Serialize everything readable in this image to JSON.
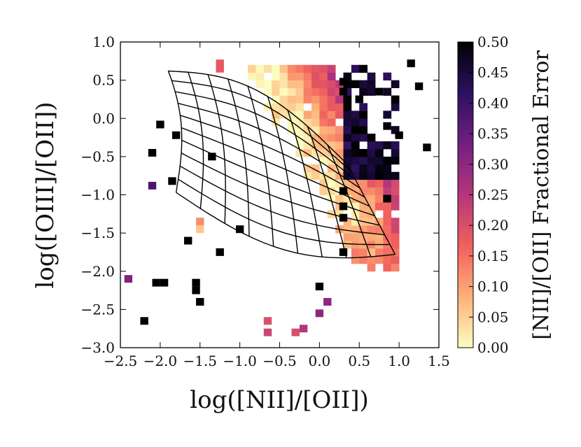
{
  "chart_data": {
    "type": "heatmap",
    "title": "",
    "xlabel": "log([NII]/[OII])",
    "ylabel": "log([OIII]/[OII])",
    "colorbar_label": "[NII]/[OII] Fractional Error",
    "xlim": [
      -2.5,
      1.5
    ],
    "ylim": [
      -3.0,
      1.0
    ],
    "x_ticks": [
      -2.5,
      -2.0,
      -1.5,
      -1.0,
      -0.5,
      0.0,
      0.5,
      1.0,
      1.5
    ],
    "x_tick_labels": [
      "−2.5",
      "−2.0",
      "−1.5",
      "−1.0",
      "−0.5",
      "0.0",
      "0.5",
      "1.0",
      "1.5"
    ],
    "y_ticks": [
      1.0,
      0.5,
      0.0,
      -0.5,
      -1.0,
      -1.5,
      -2.0,
      -2.5,
      -3.0
    ],
    "y_tick_labels": [
      "1.0",
      "0.5",
      "0.0",
      "−0.5",
      "−1.0",
      "−1.5",
      "−2.0",
      "−2.5",
      "−3.0"
    ],
    "colorbar_range": [
      0.0,
      0.5
    ],
    "colorbar_ticks": [
      0.5,
      0.45,
      0.4,
      0.35,
      0.3,
      0.25,
      0.2,
      0.15,
      0.1,
      0.05,
      0.0
    ],
    "colorbar_tick_labels": [
      "0.50",
      "0.45",
      "0.40",
      "0.35",
      "0.30",
      "0.25",
      "0.20",
      "0.15",
      "0.10",
      "0.05",
      "0.00"
    ],
    "colormap": [
      "#fcfdbf",
      "#feb078",
      "#f1605d",
      "#b5367a",
      "#721f81",
      "#2c115f",
      "#000004"
    ],
    "bin_size": 0.1,
    "grid": false,
    "outliers": [
      {
        "x": -2.4,
        "y": -2.1,
        "v": 0.32
      },
      {
        "x": -2.2,
        "y": -2.65,
        "v": 0.5
      },
      {
        "x": -2.05,
        "y": -2.15,
        "v": 0.5
      },
      {
        "x": -1.95,
        "y": -2.15,
        "v": 0.5
      },
      {
        "x": -1.55,
        "y": -2.15,
        "v": 0.5
      },
      {
        "x": -1.55,
        "y": -2.25,
        "v": 0.5
      },
      {
        "x": -1.5,
        "y": -2.4,
        "v": 0.5
      },
      {
        "x": -2.0,
        "y": -0.08,
        "v": 0.5
      },
      {
        "x": -2.1,
        "y": -0.45,
        "v": 0.5
      },
      {
        "x": -2.1,
        "y": -0.88,
        "v": 0.38
      },
      {
        "x": -1.8,
        "y": -0.22,
        "v": 0.5
      },
      {
        "x": -1.85,
        "y": -0.82,
        "v": 0.5
      },
      {
        "x": -1.65,
        "y": -1.6,
        "v": 0.5
      },
      {
        "x": -1.35,
        "y": -0.5,
        "v": 0.5
      },
      {
        "x": -1.25,
        "y": -1.75,
        "v": 0.5
      },
      {
        "x": -1.0,
        "y": -1.45,
        "v": 0.5
      },
      {
        "x": -1.5,
        "y": -1.35,
        "v": 0.12
      },
      {
        "x": -1.5,
        "y": -1.45,
        "v": 0.06
      },
      {
        "x": -1.25,
        "y": 0.65,
        "v": 0.18
      },
      {
        "x": -1.25,
        "y": 0.72,
        "v": 0.18
      },
      {
        "x": 0.3,
        "y": 0.48,
        "v": 0.5
      },
      {
        "x": 0.3,
        "y": 0.35,
        "v": 0.5
      },
      {
        "x": 0.5,
        "y": 0.25,
        "v": 0.5
      },
      {
        "x": 0.75,
        "y": 0.35,
        "v": 0.5
      },
      {
        "x": 0.85,
        "y": -0.1,
        "v": 0.5
      },
      {
        "x": 1.0,
        "y": -0.22,
        "v": 0.5
      },
      {
        "x": 1.15,
        "y": 0.72,
        "v": 0.5
      },
      {
        "x": 1.25,
        "y": 0.42,
        "v": 0.5
      },
      {
        "x": 1.35,
        "y": -0.38,
        "v": 0.5
      },
      {
        "x": 0.85,
        "y": -1.05,
        "v": 0.5
      },
      {
        "x": 0.3,
        "y": -0.95,
        "v": 0.5
      },
      {
        "x": 0.3,
        "y": -1.15,
        "v": 0.5
      },
      {
        "x": 0.3,
        "y": -1.3,
        "v": 0.5
      },
      {
        "x": 0.3,
        "y": -1.75,
        "v": 0.5
      },
      {
        "x": 0.0,
        "y": -2.2,
        "v": 0.5
      },
      {
        "x": 0.1,
        "y": -2.4,
        "v": 0.3
      },
      {
        "x": 0.0,
        "y": -2.55,
        "v": 0.3
      },
      {
        "x": -0.65,
        "y": -2.65,
        "v": 0.2
      },
      {
        "x": -0.65,
        "y": -2.8,
        "v": 0.22
      },
      {
        "x": -0.3,
        "y": -2.8,
        "v": 0.2
      },
      {
        "x": -0.2,
        "y": -2.75,
        "v": 0.25
      }
    ]
  }
}
